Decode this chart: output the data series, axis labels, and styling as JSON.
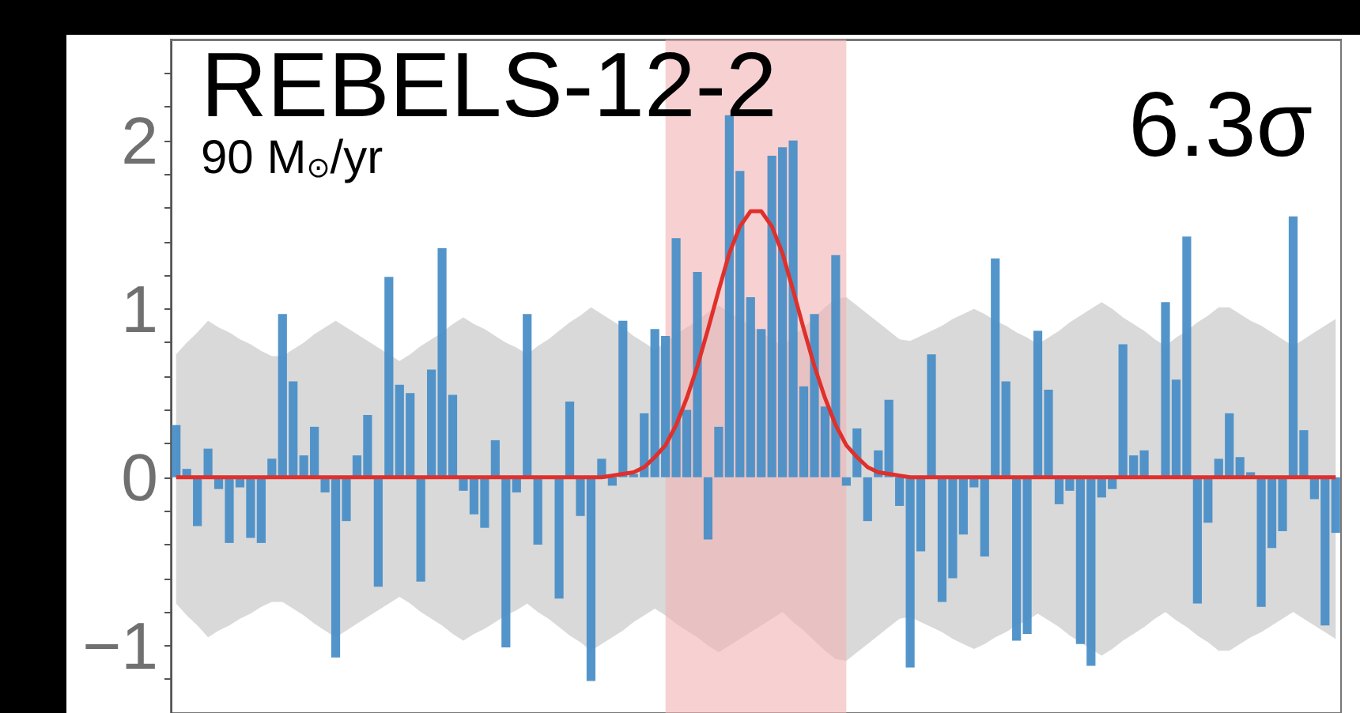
{
  "chart_data": {
    "type": "bar",
    "title": "REBELS-12-2",
    "subtitle": "90 M$_{⊙}$/yr",
    "annotations": [
      "6.3σ"
    ],
    "categories": [
      null,
      null,
      null,
      null,
      null,
      null,
      null,
      null,
      null,
      null,
      null,
      null,
      null,
      null,
      null,
      null,
      null,
      null,
      null,
      null,
      null,
      null,
      null,
      null,
      null,
      null,
      null,
      null,
      null,
      null,
      null,
      null,
      null,
      null,
      null,
      null,
      null,
      null,
      null,
      null,
      null,
      null,
      null,
      null,
      null,
      null,
      null,
      null,
      null,
      null,
      null,
      null,
      null,
      null,
      null,
      null,
      null,
      null,
      null,
      null,
      null,
      null,
      null,
      null,
      null,
      null,
      null,
      null,
      null,
      null,
      null,
      null,
      null,
      null,
      null,
      null,
      null,
      null,
      null,
      null,
      null,
      null,
      null,
      null,
      null,
      null,
      null,
      null,
      null,
      null,
      null,
      null,
      null,
      null,
      null,
      null,
      null,
      null,
      null,
      null,
      null,
      null,
      null,
      null,
      null,
      null,
      null,
      null,
      null,
      null
    ],
    "ylim": [
      -1.4,
      2.6
    ],
    "yticks": [
      {
        "value": -1.2,
        "label": null
      },
      {
        "value": -1,
        "label": "−1"
      },
      {
        "value": -0.8,
        "label": null
      },
      {
        "value": -0.6,
        "label": null
      },
      {
        "value": -0.4,
        "label": null
      },
      {
        "value": -0.2,
        "label": null
      },
      0,
      {
        "value": 0.2,
        "label": null
      },
      {
        "value": 0.4,
        "label": null
      },
      {
        "value": 0.6,
        "label": null
      },
      {
        "value": 0.8,
        "label": null
      },
      1,
      {
        "value": 1.2,
        "label": null
      },
      {
        "value": 1.4,
        "label": null
      },
      {
        "value": 1.6,
        "label": null
      },
      {
        "value": 1.8,
        "label": null
      },
      2,
      {
        "value": 2.2,
        "label": null
      },
      {
        "value": 2.4,
        "label": null
      }
    ],
    "tick_labels": "y",
    "series": [
      {
        "color": "#4a8fc7",
        "values": [
          0.31,
          0.05,
          -0.29,
          0.17,
          -0.07,
          -0.39,
          -0.06,
          -0.36,
          -0.39,
          0.11,
          0.97,
          0.57,
          0.13,
          0.3,
          -0.09,
          -1.07,
          -0.26,
          0.13,
          0.37,
          -0.65,
          1.19,
          0.55,
          0.5,
          -0.62,
          0.64,
          1.36,
          0.49,
          -0.08,
          -0.22,
          -0.3,
          0.22,
          -1.01,
          -0.09,
          0.97,
          -0.4,
          0.0,
          -0.72,
          0.45,
          -0.23,
          -1.21,
          0.11,
          -0.05,
          0.93,
          0.02,
          0.38,
          0.88,
          0.84,
          1.42,
          0.4,
          1.22,
          -0.37,
          0.3,
          2.15,
          1.82,
          1.07,
          0.88,
          1.91,
          1.96,
          2.0,
          0.54,
          0.97,
          0.42,
          1.32,
          -0.05,
          0.29,
          -0.26,
          0.16,
          0.46,
          -0.17,
          -1.13,
          -0.44,
          0.73,
          -0.74,
          -0.6,
          -0.34,
          -0.06,
          -0.47,
          1.3,
          0.57,
          -0.97,
          -0.93,
          0.87,
          0.52,
          -0.16,
          -0.08,
          -0.99,
          -1.12,
          -0.12,
          -0.07,
          0.79,
          0.13,
          0.16,
          0.0,
          1.04,
          0.58,
          1.43,
          -0.75,
          -0.27,
          0.11,
          0.38,
          0.12,
          0.03,
          -0.77,
          -0.42,
          -0.32,
          1.55,
          0.28,
          -0.13,
          -0.88,
          -0.33
        ]
      },
      {
        "type": "line",
        "color": "#e0302b",
        "values": [
          0,
          0,
          0,
          0,
          0,
          0,
          0,
          0,
          0,
          0,
          0,
          0,
          0,
          0,
          0,
          0,
          0,
          0,
          0,
          0,
          0,
          0,
          0,
          0,
          0,
          0,
          0,
          0,
          0,
          0,
          0,
          0,
          0,
          0,
          0,
          0,
          0,
          0,
          0,
          0,
          0,
          0.01,
          0.02,
          0.03,
          0.06,
          0.12,
          0.19,
          0.31,
          0.47,
          0.66,
          0.88,
          1.11,
          1.33,
          1.49,
          1.58,
          1.58,
          1.49,
          1.33,
          1.11,
          0.88,
          0.66,
          0.47,
          0.31,
          0.19,
          0.12,
          0.06,
          0.03,
          0.02,
          0.01,
          0,
          0,
          0,
          0,
          0,
          0,
          0,
          0,
          0,
          0,
          0,
          0,
          0,
          0,
          0,
          0,
          0,
          0,
          0,
          0,
          0,
          0,
          0,
          0,
          0,
          0,
          0,
          0,
          0,
          0,
          0,
          0,
          0,
          0,
          0,
          0,
          0,
          0,
          0,
          0,
          0
        ],
        "upper": [
          0.73,
          0.8,
          0.86,
          0.93,
          0.89,
          0.86,
          0.82,
          0.79,
          0.75,
          0.72,
          0.72,
          0.76,
          0.8,
          0.85,
          0.89,
          0.93,
          0.89,
          0.85,
          0.81,
          0.77,
          0.73,
          0.69,
          0.73,
          0.78,
          0.82,
          0.86,
          0.91,
          0.95,
          0.91,
          0.88,
          0.84,
          0.8,
          0.77,
          0.73,
          0.78,
          0.82,
          0.87,
          0.92,
          0.96,
          1.01,
          0.97,
          0.93,
          0.89,
          0.84,
          0.8,
          0.76,
          0.8,
          0.85,
          0.89,
          0.93,
          0.98,
          1.02,
          0.98,
          0.94,
          0.9,
          0.86,
          0.82,
          0.78,
          0.84,
          0.89,
          0.95,
          1.01,
          1.06,
          1.07,
          1.02,
          0.97,
          0.92,
          0.87,
          0.82,
          0.81,
          0.84,
          0.87,
          0.9,
          0.94,
          0.97,
          1.0,
          0.97,
          0.93,
          0.9,
          0.86,
          0.83,
          0.79,
          0.83,
          0.87,
          0.92,
          0.96,
          1.0,
          1.04,
          1.0,
          0.95,
          0.91,
          0.87,
          0.82,
          0.78,
          0.83,
          0.87,
          0.92,
          0.96,
          1.01,
          1.01,
          0.97,
          0.93,
          0.9,
          0.86,
          0.82,
          0.78,
          0.82,
          0.86,
          0.9,
          0.94
        ],
        "lower": [
          -0.75,
          -0.82,
          -0.88,
          -0.95,
          -0.91,
          -0.88,
          -0.84,
          -0.81,
          -0.77,
          -0.74,
          -0.74,
          -0.78,
          -0.82,
          -0.87,
          -0.91,
          -0.95,
          -0.91,
          -0.87,
          -0.83,
          -0.79,
          -0.75,
          -0.71,
          -0.75,
          -0.8,
          -0.84,
          -0.88,
          -0.93,
          -0.97,
          -0.93,
          -0.9,
          -0.86,
          -0.82,
          -0.79,
          -0.75,
          -0.8,
          -0.84,
          -0.89,
          -0.94,
          -0.98,
          -1.03,
          -0.99,
          -0.95,
          -0.91,
          -0.86,
          -0.82,
          -0.78,
          -0.82,
          -0.87,
          -0.91,
          -0.95,
          -1.0,
          -1.04,
          -1.0,
          -0.96,
          -0.92,
          -0.88,
          -0.84,
          -0.8,
          -0.86,
          -0.91,
          -0.97,
          -1.03,
          -1.08,
          -1.09,
          -1.04,
          -0.99,
          -0.94,
          -0.89,
          -0.84,
          -0.83,
          -0.86,
          -0.89,
          -0.92,
          -0.96,
          -0.99,
          -1.02,
          -0.99,
          -0.95,
          -0.92,
          -0.88,
          -0.85,
          -0.81,
          -0.85,
          -0.89,
          -0.94,
          -0.98,
          -1.02,
          -1.06,
          -1.02,
          -0.97,
          -0.93,
          -0.89,
          -0.84,
          -0.8,
          -0.85,
          -0.89,
          -0.94,
          -0.98,
          -1.03,
          -1.03,
          -0.99,
          -0.95,
          -0.92,
          -0.88,
          -0.84,
          -0.8,
          -0.84,
          -0.88,
          -0.92,
          -0.96
        ]
      }
    ]
  }
}
